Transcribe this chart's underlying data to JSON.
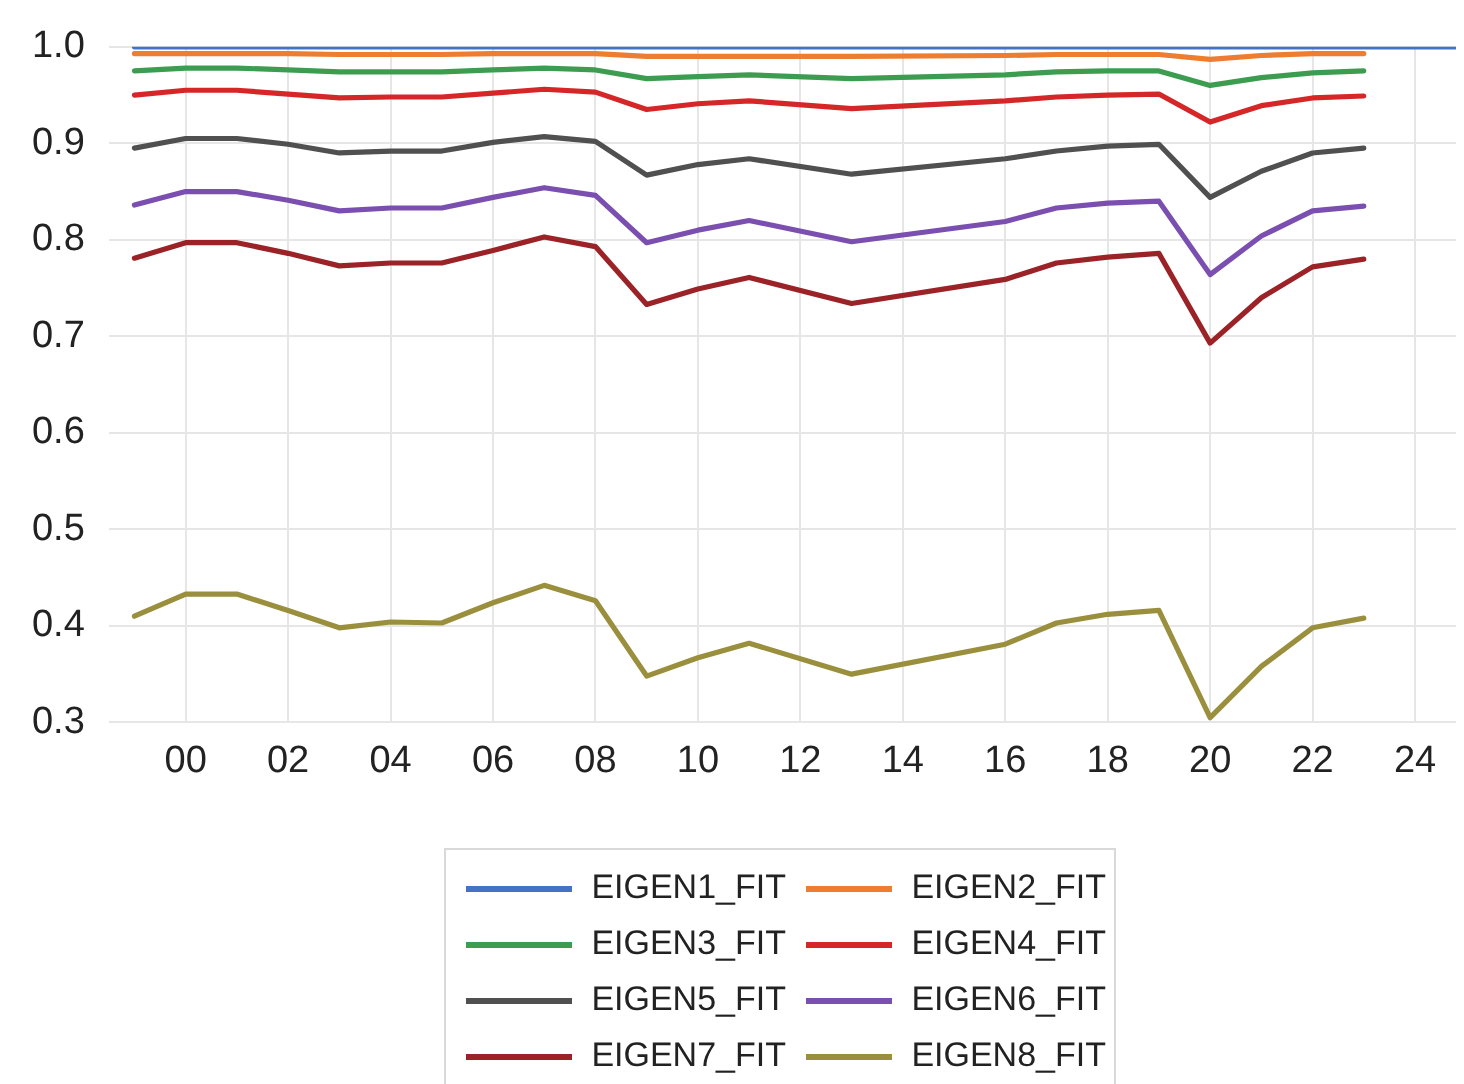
{
  "chart_data": {
    "type": "line",
    "x": [
      -1,
      0,
      1,
      2,
      3,
      4,
      5,
      6,
      7,
      8,
      9,
      10,
      11,
      13,
      16,
      17,
      18,
      19,
      20,
      21,
      22,
      23
    ],
    "series": [
      {
        "name": "EIGEN1_FIT",
        "color": "#4472c4",
        "x": [
          -1,
          24.8
        ],
        "values": [
          1.0,
          1.0
        ]
      },
      {
        "name": "EIGEN2_FIT",
        "color": "#ed7d31",
        "values": [
          0.993,
          0.993,
          0.993,
          0.993,
          0.992,
          0.992,
          0.992,
          0.993,
          0.993,
          0.993,
          0.99,
          0.99,
          0.99,
          0.99,
          0.991,
          0.992,
          0.992,
          0.992,
          0.987,
          0.991,
          0.993,
          0.993
        ]
      },
      {
        "name": "EIGEN3_FIT",
        "color": "#3c9d50",
        "values": [
          0.975,
          0.978,
          0.978,
          0.976,
          0.974,
          0.974,
          0.974,
          0.976,
          0.978,
          0.976,
          0.967,
          0.969,
          0.971,
          0.967,
          0.971,
          0.974,
          0.975,
          0.975,
          0.96,
          0.968,
          0.973,
          0.975
        ]
      },
      {
        "name": "EIGEN4_FIT",
        "color": "#d62728",
        "values": [
          0.95,
          0.955,
          0.955,
          0.951,
          0.947,
          0.948,
          0.948,
          0.952,
          0.956,
          0.953,
          0.935,
          0.941,
          0.944,
          0.936,
          0.944,
          0.948,
          0.95,
          0.951,
          0.922,
          0.939,
          0.947,
          0.949
        ]
      },
      {
        "name": "EIGEN5_FIT",
        "color": "#505050",
        "values": [
          0.895,
          0.905,
          0.905,
          0.899,
          0.89,
          0.892,
          0.892,
          0.901,
          0.907,
          0.902,
          0.867,
          0.878,
          0.884,
          0.868,
          0.884,
          0.892,
          0.897,
          0.899,
          0.844,
          0.871,
          0.89,
          0.895
        ]
      },
      {
        "name": "EIGEN6_FIT",
        "color": "#7b4fb0",
        "values": [
          0.836,
          0.85,
          0.85,
          0.841,
          0.83,
          0.833,
          0.833,
          0.844,
          0.854,
          0.846,
          0.797,
          0.81,
          0.82,
          0.798,
          0.819,
          0.833,
          0.838,
          0.84,
          0.764,
          0.804,
          0.83,
          0.835
        ]
      },
      {
        "name": "EIGEN7_FIT",
        "color": "#9b2226",
        "values": [
          0.781,
          0.797,
          0.797,
          0.786,
          0.773,
          0.776,
          0.776,
          0.789,
          0.803,
          0.793,
          0.733,
          0.749,
          0.761,
          0.734,
          0.759,
          0.776,
          0.782,
          0.786,
          0.693,
          0.74,
          0.772,
          0.78
        ]
      },
      {
        "name": "EIGEN8_FIT",
        "color": "#9a8f3c",
        "values": [
          0.41,
          0.433,
          0.433,
          0.416,
          0.398,
          0.404,
          0.403,
          0.424,
          0.442,
          0.426,
          0.348,
          0.367,
          0.382,
          0.35,
          0.381,
          0.403,
          0.412,
          0.416,
          0.305,
          0.358,
          0.398,
          0.408
        ]
      }
    ],
    "xlim": [
      -1.5,
      24.8
    ],
    "xticks": [
      {
        "value": 0,
        "label": "00"
      },
      {
        "value": 2,
        "label": "02"
      },
      {
        "value": 4,
        "label": "04"
      },
      {
        "value": 6,
        "label": "06"
      },
      {
        "value": 8,
        "label": "08"
      },
      10,
      12,
      14,
      16,
      18,
      20,
      22,
      24
    ],
    "ylim": [
      0.3,
      1.0
    ],
    "yticks": [
      0.3,
      0.4,
      0.5,
      0.6,
      0.7,
      0.8,
      0.9,
      {
        "value": 1.0,
        "label": "1.0"
      }
    ],
    "grid": true,
    "legend": "bottom",
    "marker": "none",
    "line_style": "solid"
  }
}
